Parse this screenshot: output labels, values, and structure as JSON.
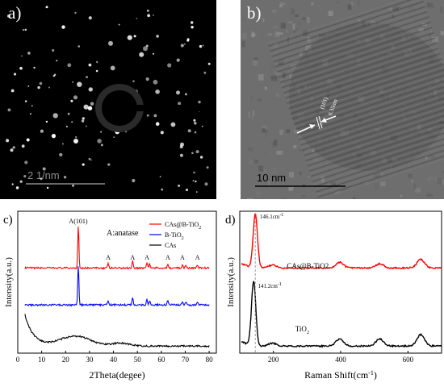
{
  "panels": {
    "a": {
      "label": "a)",
      "scale_text": "2 1/nm"
    },
    "b": {
      "label": "b)",
      "scale_text": "10 nm",
      "plane_label": "(101)",
      "spacing_label": "0.35nm"
    },
    "c": {
      "label": "c)"
    },
    "d": {
      "label": "d)"
    }
  },
  "colors": {
    "red": "#ff0000",
    "blue": "#0000ff",
    "black": "#000000",
    "lattice": "#ffffff"
  },
  "chart_data": [
    {
      "type": "line",
      "panel": "c",
      "xlabel": "2Theta(degee)",
      "ylabel": "Intensity(a.u.)",
      "xlim": [
        0,
        83
      ],
      "ylim": [
        0,
        100
      ],
      "xticks": [
        0,
        10,
        20,
        30,
        40,
        50,
        60,
        70,
        80
      ],
      "legend_position": "top-right",
      "annotation_title": "A:anatase",
      "peak_label_main": "A(101)",
      "peak_marker": "A",
      "anatase_peaks": [
        25.3,
        37.8,
        48.0,
        54.0,
        55.1,
        62.7,
        68.8,
        70.3,
        75.1
      ],
      "marked_peaks": [
        37.8,
        48.0,
        54.0,
        62.7,
        68.8,
        75.1
      ],
      "series": [
        {
          "name": "CAs@B-TiO",
          "name_sub": "2",
          "color": "#ff0000",
          "baseline": 60,
          "peak_scale": [
            30,
            3,
            5,
            4,
            3,
            3,
            2,
            2,
            2
          ]
        },
        {
          "name": "B-TiO",
          "name_sub": "2",
          "color": "#0000ff",
          "baseline": 34,
          "peak_scale": [
            28,
            3,
            5,
            4,
            3,
            3,
            2,
            2,
            2
          ]
        },
        {
          "name": "CAs",
          "name_sub": "",
          "color": "#000000",
          "baseline": 5,
          "broad_hump": 24
        }
      ]
    },
    {
      "type": "line",
      "panel": "d",
      "xlabel": "Raman Shift(cm",
      "xlabel_sup": "-1",
      "xlabel_end": ")",
      "ylabel": "Intensity(a.u.)",
      "xlim": [
        100,
        700
      ],
      "ylim": [
        0,
        100
      ],
      "xticks": [
        200,
        400,
        600
      ],
      "annotations": [
        {
          "text": "146.1cm",
          "sup": "-1",
          "x": 146.1,
          "series": "CAs@B-TiO2"
        },
        {
          "text": "141.2cm",
          "sup": "-1",
          "x": 141.2,
          "series": "TiO2"
        }
      ],
      "series": [
        {
          "name": "CAs@B-TiO2",
          "color": "#ff0000",
          "baseline": 60,
          "peaks": [
            [
              146.1,
              38
            ],
            [
              197,
              2
            ],
            [
              397,
              4
            ],
            [
              516,
              3
            ],
            [
              638,
              6
            ]
          ]
        },
        {
          "name": "TiO",
          "name_sub": "2",
          "color": "#000000",
          "baseline": 5,
          "peaks": [
            [
              141.2,
              46
            ],
            [
              197,
              2
            ],
            [
              397,
              5
            ],
            [
              516,
              5
            ],
            [
              638,
              8
            ]
          ]
        }
      ]
    }
  ]
}
